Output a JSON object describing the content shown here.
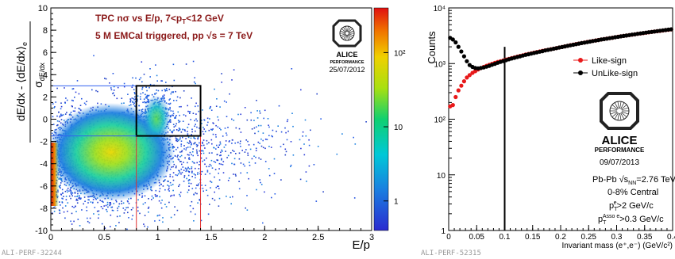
{
  "chart_data": [
    {
      "type": "heatmap",
      "xlabel": "E/p",
      "ylabel_num": "dE/dx - ⟨dE/dx⟩",
      "ylabel_num_sub": "e",
      "ylabel_den": "σ",
      "ylabel_den_sub": "dE/dx",
      "xlim": [
        0,
        3
      ],
      "ylim": [
        -10,
        10
      ],
      "x_ticks": [
        "0",
        "0.5",
        "1",
        "1.5",
        "2",
        "2.5",
        "3"
      ],
      "y_ticks": [
        "-10",
        "-8",
        "-6",
        "-4",
        "-2",
        "0",
        "2",
        "4",
        "6",
        "8",
        "10"
      ],
      "zscale": "log",
      "z_ticks": [
        "1",
        "10",
        "10²"
      ],
      "annotations": {
        "line1": "TPC nσ vs E/p, 7<p",
        "line1_sub": "T",
        "line1_tail": "<12 GeV",
        "line2": "5 M EMCal triggered, pp √s = 7 TeV"
      },
      "logo": {
        "name": "ALICE",
        "sub": "PERFORMANCE",
        "date": "25/07/2012"
      },
      "selection_box": {
        "x": [
          0.8,
          1.4
        ],
        "y": [
          -1.5,
          3
        ]
      },
      "blue_line_y": 3,
      "red_lines_x": [
        0.8,
        1.4
      ],
      "footer": "ALI-PERF-32244"
    },
    {
      "type": "scatter",
      "xlabel": "Invariant mass (e⁺,e⁻) (GeV/c²)",
      "ylabel": "Counts",
      "xlim": [
        0,
        0.4
      ],
      "ylim": [
        1,
        10000
      ],
      "yscale": "log",
      "x_ticks": [
        "0",
        "0.05",
        "0.1",
        "0.15",
        "0.2",
        "0.25",
        "0.3",
        "0.35",
        "0.4"
      ],
      "y_ticks": [
        "1",
        "10",
        "10²",
        "10³",
        "10⁴"
      ],
      "vertical_line_x": 0.1,
      "x": [
        0.0025,
        0.0075,
        0.0125,
        0.0175,
        0.0225,
        0.0275,
        0.0325,
        0.0375,
        0.0425,
        0.0475,
        0.0525,
        0.0575,
        0.0625,
        0.0675,
        0.0725,
        0.0775,
        0.0825,
        0.0875,
        0.0925,
        0.0975,
        0.1025,
        0.1075,
        0.1125,
        0.1175,
        0.1225,
        0.1275,
        0.1325,
        0.1375,
        0.1425,
        0.1475,
        0.1525,
        0.1575,
        0.1625,
        0.1675,
        0.1725,
        0.1775,
        0.1825,
        0.1875,
        0.1925,
        0.1975,
        0.2025,
        0.2075,
        0.2125,
        0.2175,
        0.2225,
        0.2275,
        0.2325,
        0.2375,
        0.2425,
        0.2475,
        0.2525,
        0.2575,
        0.2625,
        0.2675,
        0.2725,
        0.2775,
        0.2825,
        0.2875,
        0.2925,
        0.2975,
        0.3025,
        0.3075,
        0.3125,
        0.3175,
        0.3225,
        0.3275,
        0.3325,
        0.3375,
        0.3425,
        0.3475,
        0.3525,
        0.3575,
        0.3625,
        0.3675,
        0.3725,
        0.3775,
        0.3825,
        0.3875,
        0.3925,
        0.3975
      ],
      "series": [
        {
          "name": "Like-sign",
          "color": "#e8191a",
          "values": [
            170,
            180,
            250,
            330,
            400,
            480,
            560,
            620,
            680,
            730,
            780,
            830,
            870,
            910,
            950,
            990,
            1030,
            1070,
            1100,
            1140,
            1180,
            1210,
            1250,
            1290,
            1330,
            1370,
            1410,
            1450,
            1490,
            1530,
            1570,
            1610,
            1650,
            1690,
            1730,
            1770,
            1810,
            1850,
            1900,
            1940,
            1990,
            2040,
            2090,
            2140,
            2190,
            2240,
            2290,
            2340,
            2390,
            2440,
            2490,
            2550,
            2600,
            2650,
            2700,
            2760,
            2810,
            2860,
            2920,
            2970,
            3030,
            3080,
            3140,
            3190,
            3250,
            3300,
            3360,
            3420,
            3470,
            3530,
            3590,
            3640,
            3700,
            3760,
            3820,
            3870,
            3930,
            3990,
            4040,
            4100
          ]
        },
        {
          "name": "UnLike-sign",
          "color": "#000000",
          "values": [
            2900,
            2700,
            2400,
            2000,
            1650,
            1350,
            1100,
            940,
            870,
            830,
            820,
            830,
            850,
            880,
            910,
            950,
            990,
            1030,
            1070,
            1110,
            1150,
            1190,
            1230,
            1270,
            1310,
            1350,
            1390,
            1430,
            1470,
            1510,
            1550,
            1590,
            1630,
            1670,
            1720,
            1760,
            1800,
            1850,
            1890,
            1940,
            1980,
            2030,
            2080,
            2130,
            2180,
            2230,
            2280,
            2330,
            2380,
            2430,
            2480,
            2540,
            2590,
            2640,
            2700,
            2750,
            2800,
            2860,
            2910,
            2970,
            3020,
            3080,
            3130,
            3190,
            3250,
            3310,
            3360,
            3420,
            3480,
            3540,
            3600,
            3650,
            3710,
            3770,
            3830,
            3890,
            3950,
            4010,
            4070,
            4130
          ]
        }
      ],
      "legend_position": "top-right",
      "logo": {
        "name": "ALICE",
        "sub": "PERFORMANCE",
        "date": "09/07/2013"
      },
      "annotations": {
        "system": "Pb-Pb  √s",
        "system_sub": "NN",
        "system_tail": "=2.76 TeV",
        "centrality": "0-8% Central",
        "cut1": "p",
        "cut1_sup": "e",
        "cut1_sub": "T",
        "cut1_tail": ">2 GeV/c",
        "cut2": "p",
        "cut2_sup": "Asso e",
        "cut2_sub": "T",
        "cut2_tail": ">0.3 GeV/c"
      },
      "footer": "ALI-PERF-52315"
    }
  ]
}
